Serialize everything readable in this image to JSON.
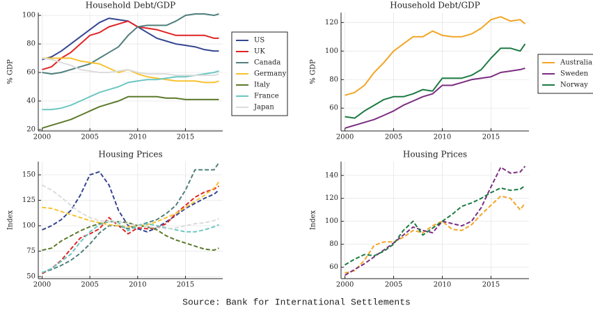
{
  "source": "Source: Bank for International Settlements",
  "chart_data": [
    {
      "type": "line",
      "title": "Household Debt/GDP",
      "ylabel": "% GDP",
      "x": [
        2000,
        2001,
        2002,
        2003,
        2004,
        2005,
        2006,
        2007,
        2008,
        2009,
        2010,
        2011,
        2012,
        2013,
        2014,
        2015,
        2016,
        2017,
        2018,
        2018.5
      ],
      "xlim": [
        1999.6,
        2018.9
      ],
      "xticks": [
        2000,
        2005,
        2010,
        2015
      ],
      "ylim": [
        19,
        102
      ],
      "yticks": [
        20,
        40,
        60,
        80,
        100
      ],
      "grid": true,
      "dashed": false,
      "legend": "outside right",
      "series": [
        {
          "name": "US",
          "color": "#34468f",
          "values": [
            69,
            71,
            75,
            80,
            85,
            90,
            95,
            98,
            97,
            96,
            92,
            88,
            84,
            82,
            80,
            79,
            78,
            76,
            75,
            75
          ]
        },
        {
          "name": "UK",
          "color": "#e02424",
          "values": [
            62,
            64,
            70,
            74,
            80,
            86,
            88,
            92,
            94,
            96,
            92,
            91,
            90,
            88,
            86,
            86,
            86,
            86,
            84,
            84
          ]
        },
        {
          "name": "Canada",
          "color": "#4f807c",
          "values": [
            60,
            59,
            60,
            62,
            64,
            66,
            70,
            74,
            78,
            86,
            92,
            93,
            93,
            93,
            96,
            100,
            101,
            101,
            100,
            101
          ]
        },
        {
          "name": "Germany",
          "color": "#f7c231",
          "values": [
            70,
            70,
            70,
            70,
            68,
            67,
            66,
            63,
            60,
            62,
            59,
            57,
            56,
            55,
            54,
            54,
            54,
            53,
            53,
            54
          ]
        },
        {
          "name": "Italy",
          "color": "#5d7a2c",
          "values": [
            21,
            23,
            25,
            27,
            30,
            33,
            36,
            38,
            40,
            43,
            43,
            43,
            43,
            42,
            42,
            41,
            41,
            41,
            41,
            41
          ]
        },
        {
          "name": "France",
          "color": "#6cc7c2",
          "values": [
            34,
            34,
            35,
            37,
            40,
            43,
            46,
            48,
            50,
            53,
            54,
            55,
            55,
            56,
            57,
            57,
            58,
            59,
            60,
            61
          ]
        },
        {
          "name": "Japan",
          "color": "#dcdcdc",
          "values": [
            70,
            69,
            67,
            65,
            62,
            61,
            60,
            60,
            61,
            62,
            60,
            59,
            59,
            59,
            58,
            58,
            58,
            58,
            58,
            59
          ]
        }
      ]
    },
    {
      "type": "line",
      "title": "Household Debt/GDP",
      "ylabel": "% GDP",
      "x": [
        2000,
        2001,
        2002,
        2003,
        2004,
        2005,
        2006,
        2007,
        2008,
        2009,
        2010,
        2011,
        2012,
        2013,
        2014,
        2015,
        2016,
        2017,
        2018,
        2018.5
      ],
      "xlim": [
        1999.6,
        2018.9
      ],
      "xticks": [
        2000,
        2005,
        2010,
        2015
      ],
      "ylim": [
        44,
        127
      ],
      "yticks": [
        60,
        80,
        100,
        120
      ],
      "grid": true,
      "dashed": false,
      "legend": "outside right",
      "series": [
        {
          "name": "Australia",
          "color": "#f2a526",
          "values": [
            69,
            71,
            76,
            85,
            92,
            100,
            105,
            110,
            110,
            114,
            111,
            110,
            110,
            112,
            116,
            122,
            124,
            121,
            122,
            119
          ]
        },
        {
          "name": "Sweden",
          "color": "#7b2d80",
          "values": [
            46,
            48,
            50,
            52,
            55,
            58,
            62,
            65,
            68,
            70,
            76,
            76,
            78,
            80,
            81,
            82,
            85,
            86,
            87,
            88
          ]
        },
        {
          "name": "Norway",
          "color": "#1c7a43",
          "values": [
            54,
            53,
            58,
            62,
            66,
            68,
            68,
            70,
            73,
            72,
            81,
            81,
            81,
            83,
            87,
            95,
            102,
            102,
            100,
            105
          ]
        }
      ]
    },
    {
      "type": "line",
      "title": "Housing Prices",
      "ylabel": "Index",
      "x": [
        2000,
        2001,
        2002,
        2003,
        2004,
        2005,
        2006,
        2007,
        2008,
        2009,
        2010,
        2011,
        2012,
        2013,
        2014,
        2015,
        2016,
        2017,
        2018,
        2018.5
      ],
      "xlim": [
        1999.6,
        2018.9
      ],
      "xticks": [
        2000,
        2005,
        2010,
        2015
      ],
      "ylim": [
        48,
        163
      ],
      "yticks": [
        50,
        75,
        100,
        125,
        150
      ],
      "grid": true,
      "dashed": true,
      "legend": "none",
      "series": [
        {
          "color": "#34468f",
          "values": [
            96,
            100,
            106,
            115,
            130,
            150,
            153,
            140,
            115,
            100,
            97,
            94,
            98,
            104,
            110,
            117,
            122,
            127,
            131,
            135
          ]
        },
        {
          "color": "#e02424",
          "values": [
            53,
            58,
            66,
            77,
            88,
            92,
            97,
            108,
            100,
            92,
            98,
            97,
            98,
            102,
            112,
            120,
            128,
            133,
            136,
            139
          ]
        },
        {
          "color": "#4f807c",
          "values": [
            54,
            57,
            61,
            66,
            73,
            82,
            93,
            100,
            100,
            97,
            100,
            103,
            106,
            112,
            120,
            135,
            155,
            155,
            155,
            162
          ]
        },
        {
          "color": "#f7c231",
          "values": [
            118,
            117,
            114,
            111,
            108,
            105,
            103,
            101,
            100,
            99,
            100,
            101,
            104,
            108,
            112,
            118,
            124,
            130,
            137,
            143
          ]
        },
        {
          "color": "#5d7a2c",
          "values": [
            76,
            78,
            85,
            90,
            95,
            99,
            102,
            104,
            104,
            103,
            100,
            99,
            96,
            90,
            86,
            83,
            80,
            77,
            76,
            78
          ]
        },
        {
          "color": "#6cc7c2",
          "values": [
            54,
            58,
            65,
            72,
            84,
            94,
            101,
            105,
            103,
            95,
            100,
            102,
            100,
            98,
            96,
            94,
            94,
            96,
            99,
            101
          ]
        },
        {
          "color": "#dcdcdc",
          "values": [
            140,
            135,
            128,
            120,
            113,
            108,
            105,
            104,
            104,
            102,
            100,
            99,
            98,
            97,
            98,
            100,
            102,
            103,
            105,
            107
          ]
        }
      ]
    },
    {
      "type": "line",
      "title": "Housing Prices",
      "ylabel": "Index",
      "x": [
        2000,
        2001,
        2002,
        2003,
        2004,
        2005,
        2006,
        2007,
        2008,
        2009,
        2010,
        2011,
        2012,
        2013,
        2014,
        2015,
        2016,
        2017,
        2018,
        2018.5
      ],
      "xlim": [
        1999.6,
        2018.9
      ],
      "xticks": [
        2000,
        2005,
        2010,
        2015
      ],
      "ylim": [
        50,
        152
      ],
      "yticks": [
        60,
        80,
        100,
        120,
        140
      ],
      "grid": true,
      "dashed": true,
      "legend": "none",
      "series": [
        {
          "color": "#f2a526",
          "values": [
            55,
            57,
            66,
            79,
            82,
            82,
            86,
            92,
            90,
            96,
            100,
            93,
            92,
            97,
            106,
            114,
            122,
            120,
            110,
            116
          ]
        },
        {
          "color": "#7b2d80",
          "values": [
            53,
            58,
            63,
            69,
            75,
            81,
            88,
            95,
            92,
            90,
            100,
            98,
            96,
            100,
            112,
            130,
            147,
            142,
            143,
            148
          ]
        },
        {
          "color": "#1c7a43",
          "values": [
            62,
            67,
            71,
            70,
            74,
            80,
            92,
            100,
            88,
            94,
            100,
            106,
            113,
            116,
            120,
            125,
            129,
            127,
            128,
            131
          ]
        }
      ]
    }
  ]
}
